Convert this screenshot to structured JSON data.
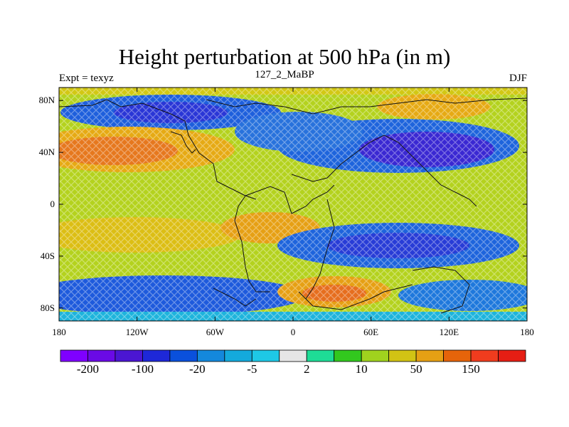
{
  "title": "Height perturbation at 500 hPa (in m)",
  "left_title": "Expt = texyz",
  "center_title": "127_2_MaBP",
  "right_title": "DJF",
  "map": {
    "lon_range": [
      -180,
      180
    ],
    "lat_range": [
      -90,
      90
    ],
    "lat_ticks": [
      {
        "value": 80,
        "label": "80N"
      },
      {
        "value": 40,
        "label": "40N"
      },
      {
        "value": 0,
        "label": "0"
      },
      {
        "value": -40,
        "label": "40S"
      },
      {
        "value": -80,
        "label": "80S"
      }
    ],
    "lon_ticks": [
      {
        "value": -180,
        "label": "180"
      },
      {
        "value": -120,
        "label": "120W"
      },
      {
        "value": -60,
        "label": "60W"
      },
      {
        "value": 0,
        "label": "0"
      },
      {
        "value": 60,
        "label": "60E"
      },
      {
        "value": 120,
        "label": "120E"
      },
      {
        "value": 180,
        "label": "180"
      }
    ]
  },
  "colorbar": {
    "colors": [
      "#7f00ff",
      "#6a0ae6",
      "#4b16d2",
      "#1e28d8",
      "#0a50dc",
      "#1488dc",
      "#14aadc",
      "#1ec8e6",
      "#e6e6e6",
      "#1edc96",
      "#32c81e",
      "#a0d21e",
      "#d2c314",
      "#e6a014",
      "#e6640a",
      "#f03c1e",
      "#e61e14"
    ],
    "labels": [
      {
        "text": "-200",
        "boundary": 1
      },
      {
        "text": "-100",
        "boundary": 3
      },
      {
        "text": "-20",
        "boundary": 5
      },
      {
        "text": "-5",
        "boundary": 7
      },
      {
        "text": "2",
        "boundary": 9
      },
      {
        "text": "10",
        "boundary": 11
      },
      {
        "text": "50",
        "boundary": 13
      },
      {
        "text": "150",
        "boundary": 15
      }
    ]
  }
}
